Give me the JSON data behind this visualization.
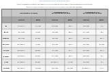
{
  "title_line1": "Imperial College COVID-19 Response Team",
  "title_line2": "Impact of suppression strategies: The impact on infections and deaths over 250 days for two different suppression strategies",
  "title_line3": "and thresholds for mortality incidence (0.2 and 1.6 deaths per 100,000 population per week)",
  "header1": [
    "",
    "Unmitigated Scenario",
    "",
    "Suppression at 0.2 deaths per\n100,000 population per week",
    "",
    "Suppression at 1.6 deaths per\n100,000 population per week",
    ""
  ],
  "header2": [
    "",
    "Infections",
    "Deaths",
    "Infections",
    "Deaths",
    "Infections",
    "Deaths"
  ],
  "regions": [
    "GB",
    "Europe",
    "Caribbean",
    "Sub-Africa",
    "S-E Asia",
    "E Medit.",
    "S Asia",
    "W Pacific"
  ],
  "data": [
    [
      "1,137,131,000",
      "25,403,000",
      "661,844,000",
      "865,000",
      "910,014,000",
      "3,130"
    ],
    [
      "851,790,000",
      "7,176,000",
      "83,376,000",
      "178,000",
      "257,700,000",
      "1,997"
    ],
    [
      "508,093,000",
      "3,250,000",
      "85,088,000",
      "276,000",
      "186,085,000",
      "715,000"
    ],
    [
      "4,253,338,000",
      "7,700,000",
      "68,409,000",
      "325,000",
      "252,262,000",
      "1,068,000"
    ],
    [
      "5,280,076,000",
      "2,865,000",
      "17,700,000",
      "83,000",
      "841,380,000",
      "742,000"
    ],
    [
      "1,717,794,000",
      "1,667,000",
      "111,703,000",
      "476,000",
      "618,084,000",
      "2,000"
    ],
    [
      "3,009,858,000",
      "2,800,000",
      "1,013,203,000",
      "1,769,000",
      "956,490,000",
      "1,200"
    ],
    [
      "1,013,703,000",
      "10,012,800",
      "309,513,000",
      "20,018,000",
      "2,021,810,000",
      "10,450"
    ]
  ],
  "header_bg": "#c8c8c8",
  "subheader_bg": "#a8a8a8",
  "row_bg_even": "#e8e8e8",
  "row_bg_odd": "#f8f8f8",
  "border_color": "#888888",
  "title_color": "#4472c4",
  "text_color": "#000000",
  "bg_color": "#ffffff"
}
